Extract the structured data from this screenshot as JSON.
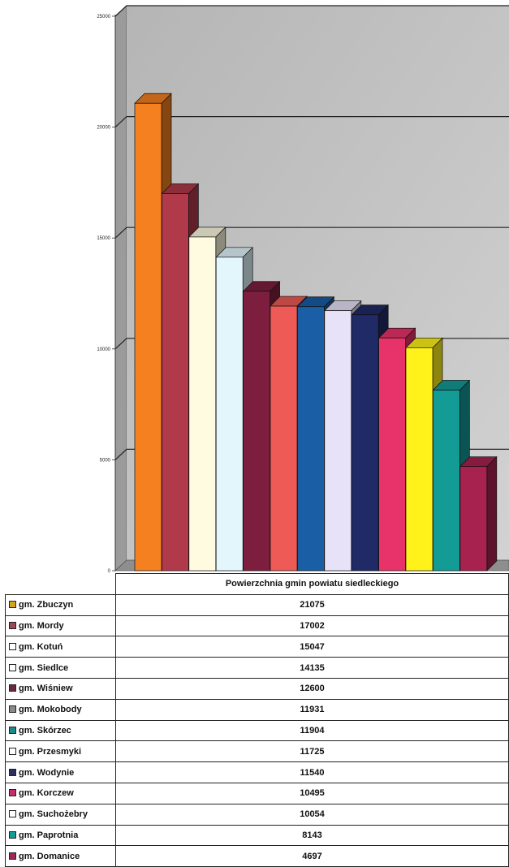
{
  "chart_data": {
    "type": "bar",
    "title": "Powierzchnia gmin powiatu siedleckiego",
    "ylim": [
      0,
      25000
    ],
    "yticks": [
      "0",
      "5000",
      "10000",
      "15000",
      "20000",
      "25000"
    ],
    "grid": true,
    "legend": "table-bottom",
    "categories": [
      "gm. Zbuczyn",
      "gm. Mordy",
      "gm. Kotuń",
      "gm. Siedlce",
      "gm. Wiśniew",
      "gm. Mokobody",
      "gm. Skórzec",
      "gm. Przesmyki",
      "gm. Wodynie",
      "gm. Korczew",
      "gm. Suchożebry",
      "gm. Paprotnia",
      "gm. Domanice"
    ],
    "values": [
      21075,
      17002,
      15047,
      14135,
      12600,
      11931,
      11904,
      11725,
      11540,
      10495,
      10054,
      8143,
      4697
    ],
    "value_labels": [
      "21075",
      "17002",
      "15047",
      "14135",
      "12600",
      "11931",
      "11904",
      "11725",
      "11540",
      "10495",
      "10054",
      "8143",
      "4697"
    ],
    "colors": [
      "#f4801f",
      "#b03a4a",
      "#fffbe0",
      "#e2f6fc",
      "#7e1e3e",
      "#ee5a55",
      "#1a5ea5",
      "#e7e2f8",
      "#1f2a66",
      "#e8326a",
      "#fff21a",
      "#139b96",
      "#a8224f"
    ],
    "swatch_colors": [
      "#d4a320",
      "#9a4a55",
      "#ffffff",
      "#ffffff",
      "#6a2a3e",
      "#8a8a8a",
      "#1d8a8a",
      "#ffffff",
      "#2a3060",
      "#c0306a",
      "#ffffff",
      "#159a95",
      "#9a2a55"
    ]
  }
}
